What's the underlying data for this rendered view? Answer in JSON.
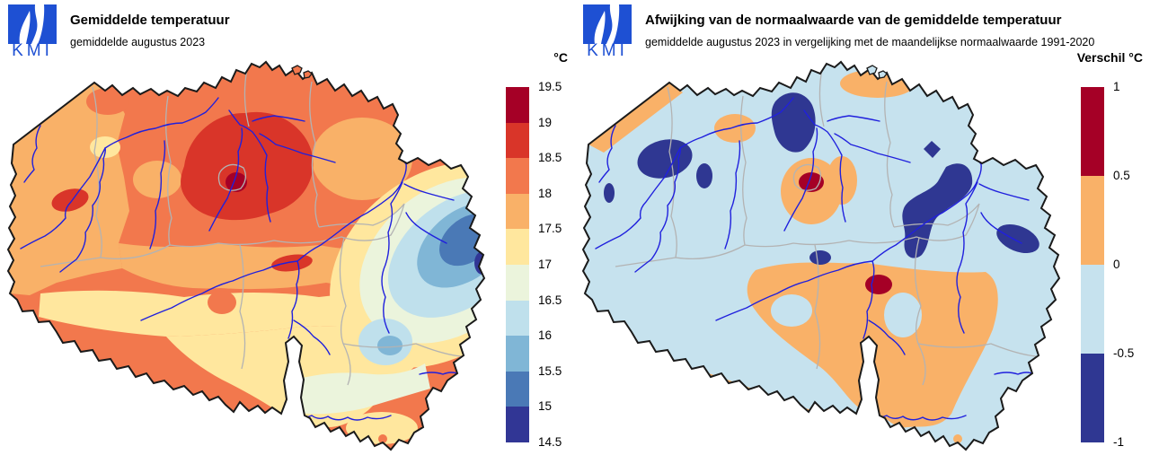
{
  "app": {
    "background": "#ffffff"
  },
  "panels": [
    {
      "logo_text": "KMI",
      "title": "Gemiddelde temperatuur",
      "subtitle": "gemiddelde augustus 2023",
      "legend": {
        "title": "°C",
        "tick_labels": [
          "19.5",
          "19",
          "18.5",
          "18",
          "17.5",
          "17",
          "16.5",
          "16",
          "15.5",
          "15",
          "14.5"
        ],
        "segment_colors_top_to_bottom": [
          "#a50026",
          "#d93529",
          "#f2784d",
          "#f9b168",
          "#ffe79e",
          "#ebf4dc",
          "#bfe0ec",
          "#80b6d6",
          "#4a79b6",
          "#313695"
        ]
      }
    },
    {
      "logo_text": "KMI",
      "title": "Afwijking van de normaalwaarde van de gemiddelde temperatuur",
      "subtitle": "gemiddelde augustus 2023 in vergelijking met de maandelijkse normaalwaarde 1991-2020",
      "legend": {
        "title": "Verschil °C",
        "tick_labels": [
          "1",
          "0.5",
          "0",
          "-0.5",
          "-1"
        ],
        "segment_colors_top_to_bottom": [
          "#a50026",
          "#f9b168",
          "#c6e2ee",
          "#2f3792"
        ]
      }
    }
  ],
  "map": {
    "region": "Belgium",
    "country_border_color": "#1a1a1a",
    "province_border_color": "#b3b3b3",
    "river_color": "#2020dd",
    "logo_blue": "#1e50d3"
  },
  "chart_data": [
    {
      "type": "heatmap",
      "map_type": "filled-contour-map",
      "region": "Belgium",
      "title": "Gemiddelde temperatuur",
      "subtitle": "gemiddelde augustus 2023",
      "unit": "°C",
      "scale_min": 14.5,
      "scale_max": 19.5,
      "scale_step": 0.5,
      "bins": [
        {
          "from": 19,
          "to": 19.5,
          "color": "#a50026"
        },
        {
          "from": 18.5,
          "to": 19,
          "color": "#d93529"
        },
        {
          "from": 18,
          "to": 18.5,
          "color": "#f2784d"
        },
        {
          "from": 17.5,
          "to": 18,
          "color": "#f9b168"
        },
        {
          "from": 17,
          "to": 17.5,
          "color": "#ffe79e"
        },
        {
          "from": 16.5,
          "to": 17,
          "color": "#ebf4dc"
        },
        {
          "from": 16,
          "to": 16.5,
          "color": "#bfe0ec"
        },
        {
          "from": 15.5,
          "to": 16,
          "color": "#80b6d6"
        },
        {
          "from": 15,
          "to": 15.5,
          "color": "#4a79b6"
        },
        {
          "from": 14.5,
          "to": 15,
          "color": "#313695"
        }
      ],
      "pattern": "Warmest (18.5-19.5 °C) in central-north Belgium around Brussels; 17.5-18.5 °C over most of Flanders and Hainaut; cooling south-eastward through the Ardennes to 15-15.5 °C in the far east (Hoge Venen); 16.5-17.5 °C in the far south (Gaume)."
    },
    {
      "type": "heatmap",
      "map_type": "filled-contour-map",
      "region": "Belgium",
      "title": "Afwijking van de normaalwaarde van de gemiddelde temperatuur",
      "subtitle": "gemiddelde augustus 2023 in vergelijking met de maandelijkse normaalwaarde 1991-2020",
      "unit": "°C",
      "scale_min": -1,
      "scale_max": 1,
      "scale_step": 0.5,
      "bins": [
        {
          "from": 0.5,
          "to": 1,
          "color": "#a50026"
        },
        {
          "from": 0,
          "to": 0.5,
          "color": "#f9b168"
        },
        {
          "from": -0.5,
          "to": 0,
          "color": "#c6e2ee"
        },
        {
          "from": -1,
          "to": -0.5,
          "color": "#2f3792"
        }
      ],
      "pattern": "Mostly slightly below normal (-0.5 to 0 °C); below -0.5 °C in patches of West Flanders, the Kempen and along the Meuse valley; above normal (0 to 0.5 °C) along the coast and over the central/southern Ardennes; locally above +0.5 °C near Brussels and in the central Ardennes."
    }
  ]
}
